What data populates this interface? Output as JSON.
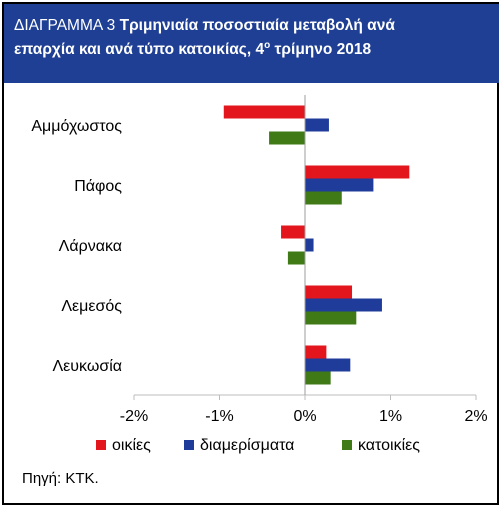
{
  "title": {
    "prefix": "ΔΙΑΓΡΑΜΜΑ 3",
    "main_line1": "Τριμηνιαία ποσοστιαία μεταβολή ανά",
    "main_line2_start": "επαρχία και ανά τύπο κατοικίας, 4",
    "superscript": "ο",
    "main_line2_end": "τρίμηνο 2018"
  },
  "source": "Πηγή: ΚΤΚ.",
  "chart_data": {
    "type": "bar",
    "orientation": "horizontal",
    "categories": [
      "Αμμόχωστος",
      "Πάφος",
      "Λάρνακα",
      "Λεμεσός",
      "Λευκωσία"
    ],
    "series": [
      {
        "name": "οικίες",
        "color": "#e2161c",
        "values": [
          -0.95,
          1.22,
          -0.28,
          0.55,
          0.25
        ]
      },
      {
        "name": "διαμερίσματα",
        "color": "#1f3c9b",
        "values": [
          0.28,
          0.8,
          0.1,
          0.9,
          0.53
        ]
      },
      {
        "name": "κατοικίες",
        "color": "#3f7a17",
        "values": [
          -0.42,
          0.43,
          -0.2,
          0.6,
          0.3
        ]
      }
    ],
    "xlim": [
      -2,
      2
    ],
    "xticks": [
      -2,
      -1,
      0,
      1,
      2
    ],
    "xtick_labels": [
      "-2%",
      "-1%",
      "0%",
      "1%",
      "2%"
    ],
    "grid": false,
    "legend_position": "bottom"
  }
}
